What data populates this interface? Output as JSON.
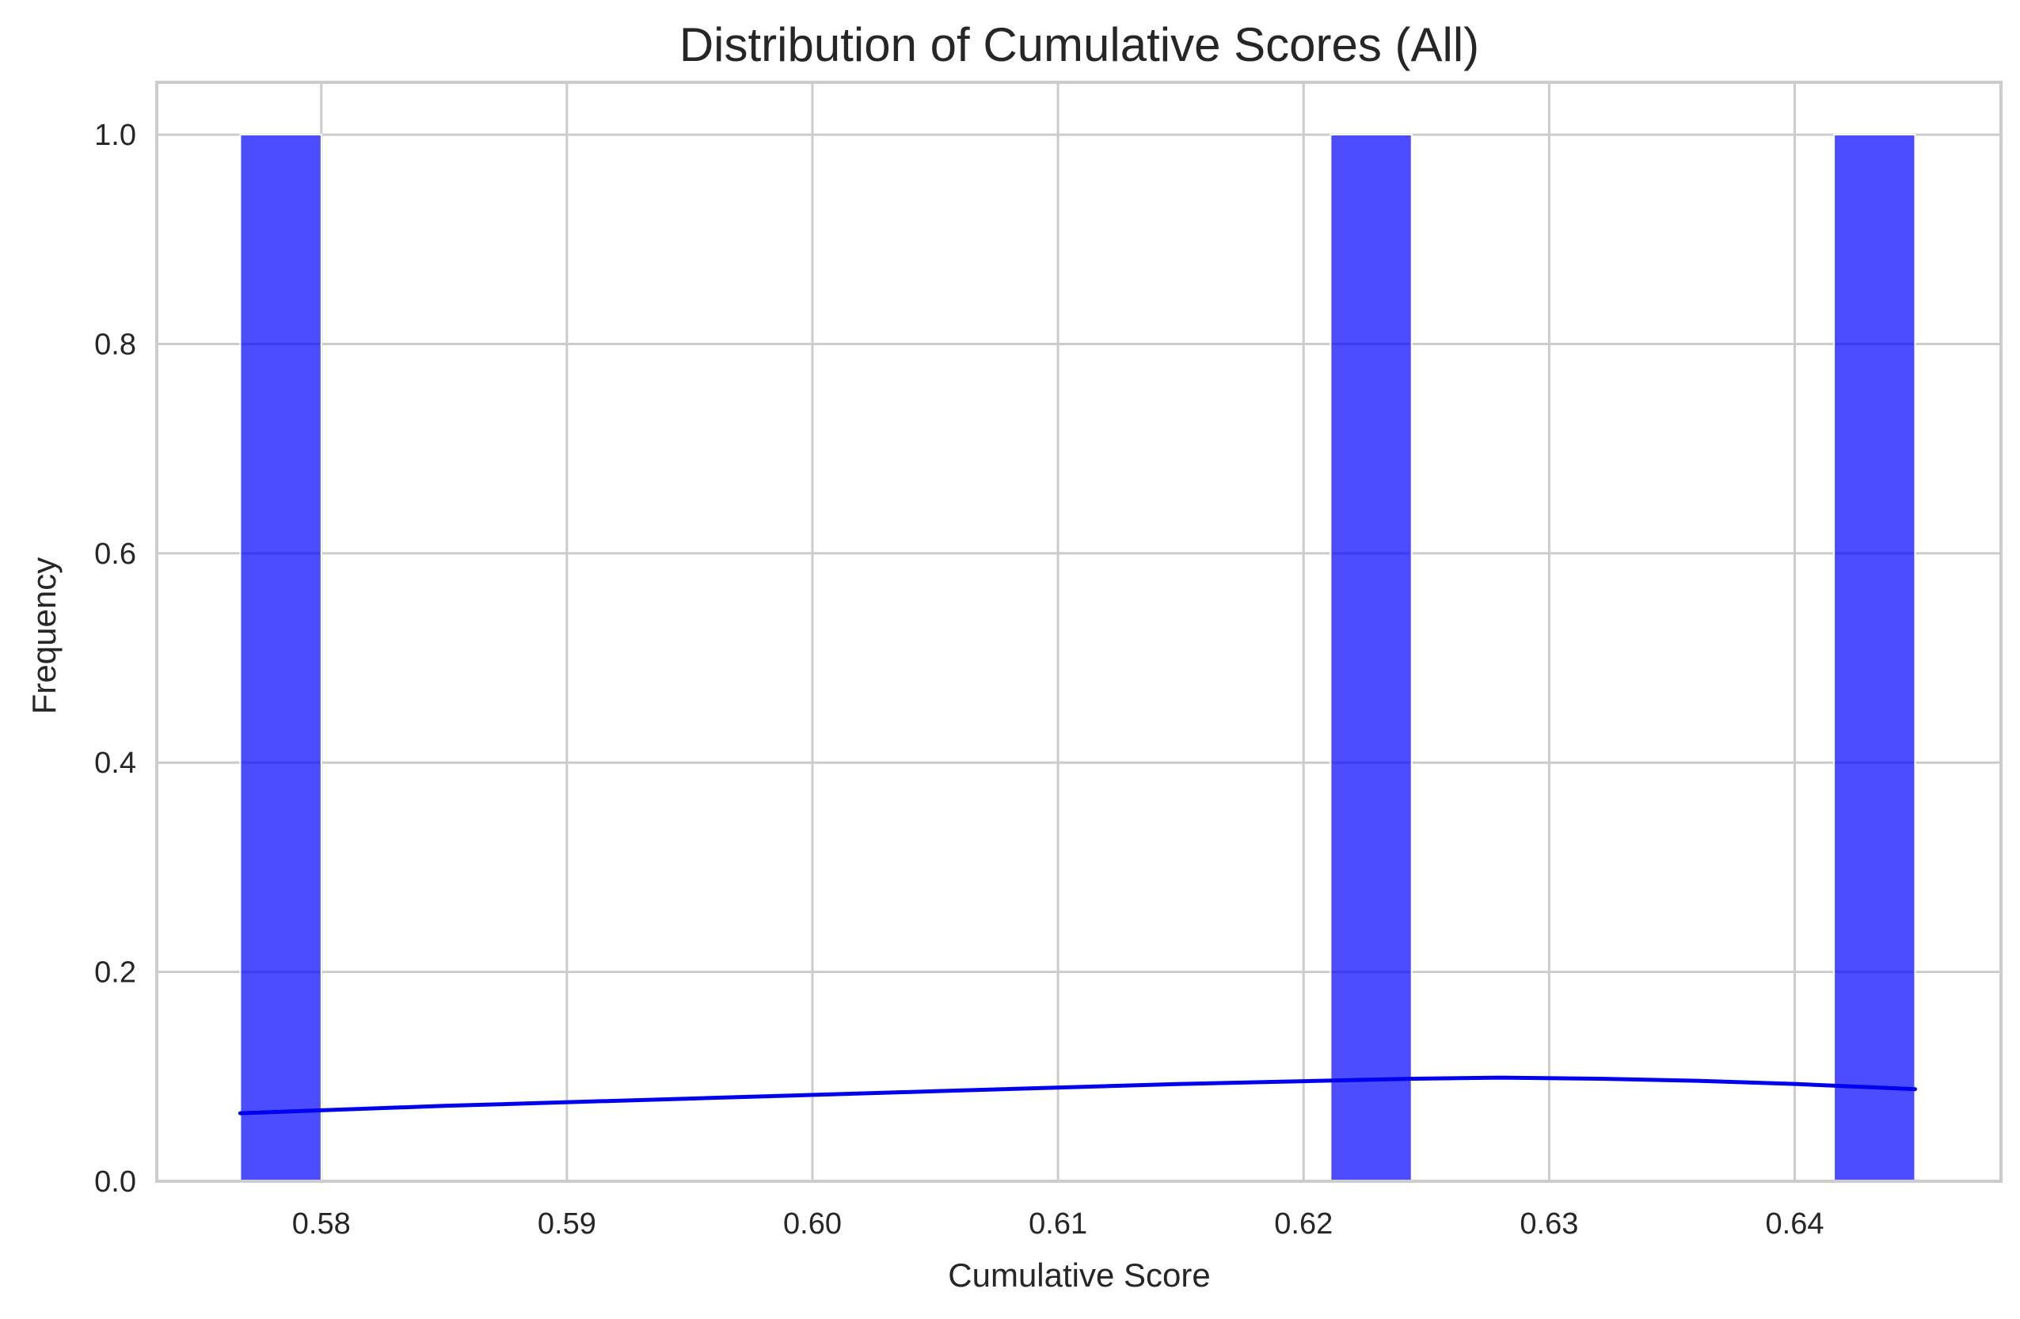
{
  "chart_data": {
    "type": "bar",
    "subtype": "histogram-with-kde",
    "title": "Distribution of Cumulative Scores (All)",
    "xlabel": "Cumulative Score",
    "ylabel": "Frequency",
    "xlim": [
      0.5733,
      0.6484
    ],
    "ylim": [
      0,
      1.05
    ],
    "x_ticks": [
      {
        "value": 0.58,
        "label": "0.58"
      },
      {
        "value": 0.59,
        "label": "0.59"
      },
      {
        "value": 0.6,
        "label": "0.60"
      },
      {
        "value": 0.61,
        "label": "0.61"
      },
      {
        "value": 0.62,
        "label": "0.62"
      },
      {
        "value": 0.63,
        "label": "0.63"
      },
      {
        "value": 0.64,
        "label": "0.64"
      }
    ],
    "y_ticks": [
      {
        "value": 0.0,
        "label": "0.0"
      },
      {
        "value": 0.2,
        "label": "0.2"
      },
      {
        "value": 0.4,
        "label": "0.4"
      },
      {
        "value": 0.6,
        "label": "0.6"
      },
      {
        "value": 0.8,
        "label": "0.8"
      },
      {
        "value": 1.0,
        "label": "1.0"
      }
    ],
    "bins": [
      {
        "x0": 0.5767,
        "x1": 0.58,
        "count": 1
      },
      {
        "x0": 0.6211,
        "x1": 0.6244,
        "count": 1
      },
      {
        "x0": 0.6416,
        "x1": 0.6449,
        "count": 1
      }
    ],
    "kde": {
      "x": [
        0.5767,
        0.585,
        0.595,
        0.605,
        0.615,
        0.6245,
        0.628,
        0.632,
        0.636,
        0.64,
        0.6449
      ],
      "y": [
        0.065,
        0.072,
        0.079,
        0.086,
        0.093,
        0.098,
        0.099,
        0.098,
        0.096,
        0.093,
        0.088
      ]
    },
    "grid": true,
    "legend": "none",
    "colors": {
      "bar": "#0000ff",
      "bar_opacity": 0.7,
      "kde_line": "#0000ee",
      "grid": "#cccccc",
      "spine": "#cccccc",
      "text": "#262626"
    }
  }
}
